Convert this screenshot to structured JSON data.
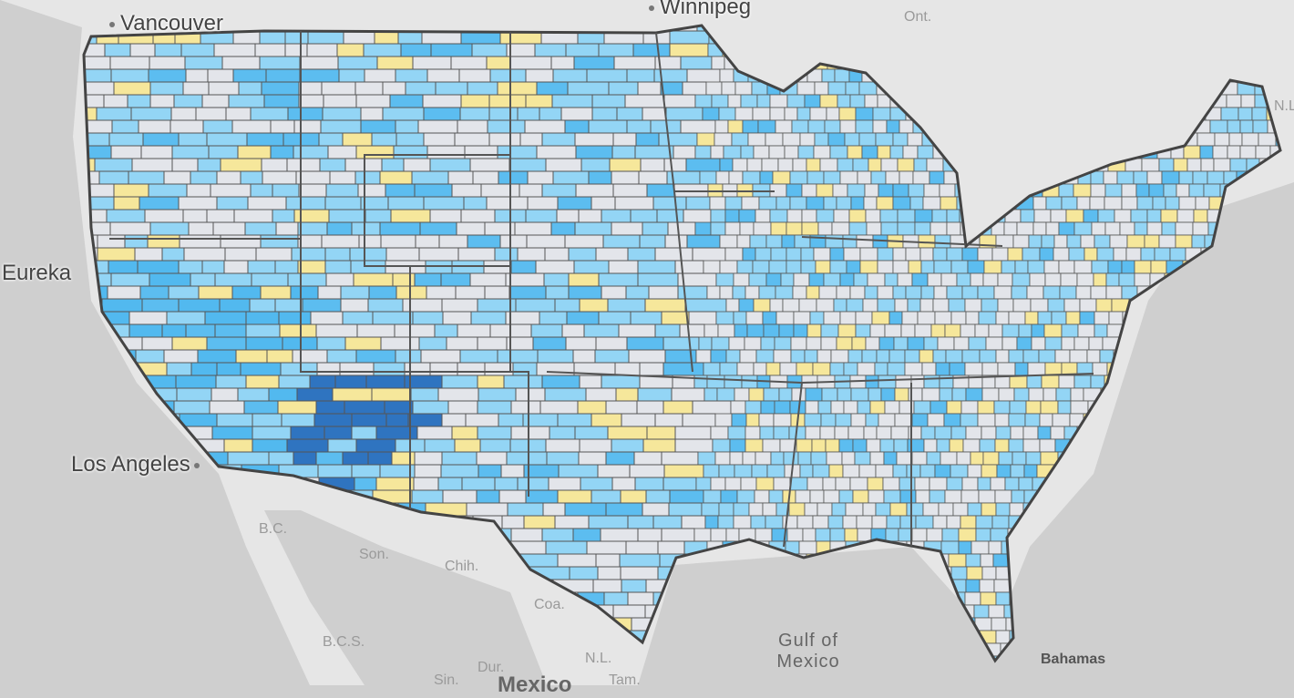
{
  "map": {
    "cities": [
      "Vancouver",
      "Winnipeg",
      "Eureka",
      "Los Angeles"
    ],
    "regions": [
      "Ont.",
      "N.L.",
      "B.C.",
      "Son.",
      "Chih.",
      "Coa.",
      "B.C.S.",
      "Dur.",
      "N.L.",
      "Tam.",
      "Sin."
    ],
    "country": "Mexico",
    "water": "Gulf of Mexico",
    "island": "Bahamas"
  }
}
